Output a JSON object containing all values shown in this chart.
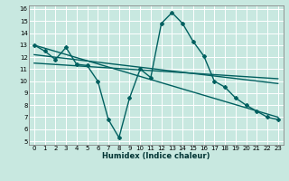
{
  "xlabel": "Humidex (Indice chaleur)",
  "xlim": [
    -0.5,
    23.5
  ],
  "ylim": [
    4.7,
    16.3
  ],
  "yticks": [
    5,
    6,
    7,
    8,
    9,
    10,
    11,
    12,
    13,
    14,
    15,
    16
  ],
  "xticks": [
    0,
    1,
    2,
    3,
    4,
    5,
    6,
    7,
    8,
    9,
    10,
    11,
    12,
    13,
    14,
    15,
    16,
    17,
    18,
    19,
    20,
    21,
    22,
    23
  ],
  "background_color": "#c8e8e0",
  "grid_color": "#ffffff",
  "main_series": {
    "x": [
      0,
      1,
      2,
      3,
      4,
      5,
      6,
      7,
      8,
      9,
      10,
      11,
      12,
      13,
      14,
      15,
      16,
      17,
      18,
      19,
      20,
      21,
      22,
      23
    ],
    "y": [
      13.0,
      12.5,
      11.8,
      12.8,
      11.4,
      11.3,
      10.0,
      6.8,
      5.3,
      8.6,
      11.0,
      10.3,
      14.8,
      15.7,
      14.8,
      13.3,
      12.1,
      10.0,
      9.5,
      8.6,
      8.0,
      7.5,
      7.0,
      6.8
    ],
    "color": "#006060",
    "lw": 1.0,
    "marker": "D",
    "ms": 2.0
  },
  "reg_lines": [
    {
      "x0": 0,
      "y0": 13.0,
      "x1": 23,
      "y1": 7.0,
      "color": "#006060",
      "lw": 1.0
    },
    {
      "x0": 0,
      "y0": 12.2,
      "x1": 23,
      "y1": 9.8,
      "color": "#006060",
      "lw": 1.0
    },
    {
      "x0": 0,
      "y0": 11.5,
      "x1": 23,
      "y1": 10.2,
      "color": "#006060",
      "lw": 1.0
    }
  ]
}
